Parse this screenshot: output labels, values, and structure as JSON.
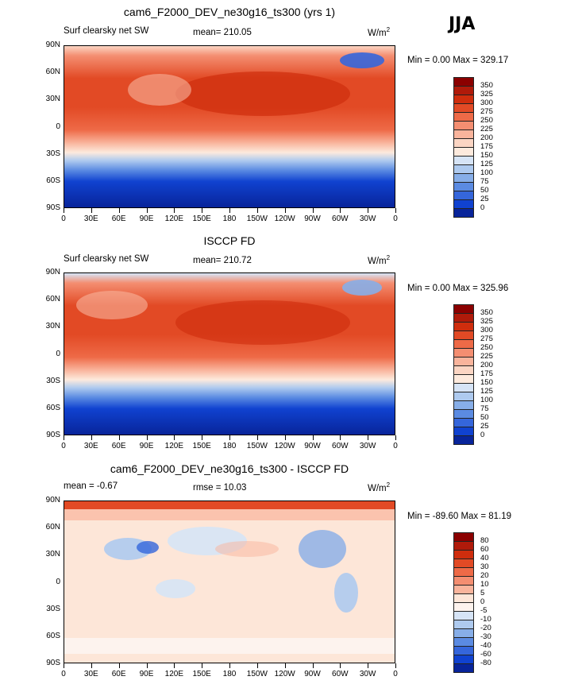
{
  "season": "JJA",
  "panels": [
    {
      "title": "cam6_F2000_DEV_ne30g16_ts300 (yrs 1)",
      "left_text": "Surf clearsky net SW",
      "center_text": "mean= 210.05",
      "units": "W/m",
      "units_exp": "2",
      "minmax": "Min =    0.00 Max = 329.17",
      "colorbar": {
        "labels": [
          "350",
          "325",
          "300",
          "275",
          "250",
          "225",
          "200",
          "175",
          "150",
          "125",
          "100",
          "75",
          "50",
          "25",
          "0"
        ],
        "colors": [
          "#8b0000",
          "#b01a0a",
          "#cf2d0d",
          "#e24a25",
          "#ee6a47",
          "#f48e71",
          "#f9b49c",
          "#fbd5c3",
          "#fdeadd",
          "#d6e4f6",
          "#aecaef",
          "#87aee8",
          "#5b8be2",
          "#3566db",
          "#1042d0",
          "#08249a"
        ]
      }
    },
    {
      "title": "ISCCP FD",
      "left_text": "Surf clearsky net SW",
      "center_text": "mean= 210.72",
      "units": "W/m",
      "units_exp": "2",
      "minmax": "Min =    0.00 Max = 325.96",
      "colorbar": {
        "labels": [
          "350",
          "325",
          "300",
          "275",
          "250",
          "225",
          "200",
          "175",
          "150",
          "125",
          "100",
          "75",
          "50",
          "25",
          "0"
        ],
        "colors": [
          "#8b0000",
          "#b01a0a",
          "#cf2d0d",
          "#e24a25",
          "#ee6a47",
          "#f48e71",
          "#f9b49c",
          "#fbd5c3",
          "#fdeadd",
          "#d6e4f6",
          "#aecaef",
          "#87aee8",
          "#5b8be2",
          "#3566db",
          "#1042d0",
          "#08249a"
        ]
      }
    },
    {
      "title": "cam6_F2000_DEV_ne30g16_ts300 - ISCCP FD",
      "left_text": "mean =   -0.67",
      "center_text": "rmse =   10.03",
      "units": "W/m",
      "units_exp": "2",
      "minmax": "Min = -89.60 Max =  81.19",
      "colorbar": {
        "labels": [
          "80",
          "60",
          "40",
          "30",
          "20",
          "10",
          "5",
          "0",
          "-5",
          "-10",
          "-20",
          "-30",
          "-40",
          "-60",
          "-80"
        ],
        "colors": [
          "#8b0000",
          "#b01a0a",
          "#cf2d0d",
          "#e24a25",
          "#ee6a47",
          "#f48e71",
          "#f9b49c",
          "#fde6d8",
          "#fdf3ee",
          "#d6e4f6",
          "#aecaef",
          "#87aee8",
          "#5b8be2",
          "#3566db",
          "#1042d0",
          "#08249a"
        ]
      }
    }
  ],
  "lat_labels": [
    "90N",
    "60N",
    "30N",
    "0",
    "30S",
    "60S",
    "90S"
  ],
  "lon_labels": [
    "0",
    "30E",
    "60E",
    "90E",
    "120E",
    "150E",
    "180",
    "150W",
    "120W",
    "90W",
    "60W",
    "30W",
    "0"
  ]
}
